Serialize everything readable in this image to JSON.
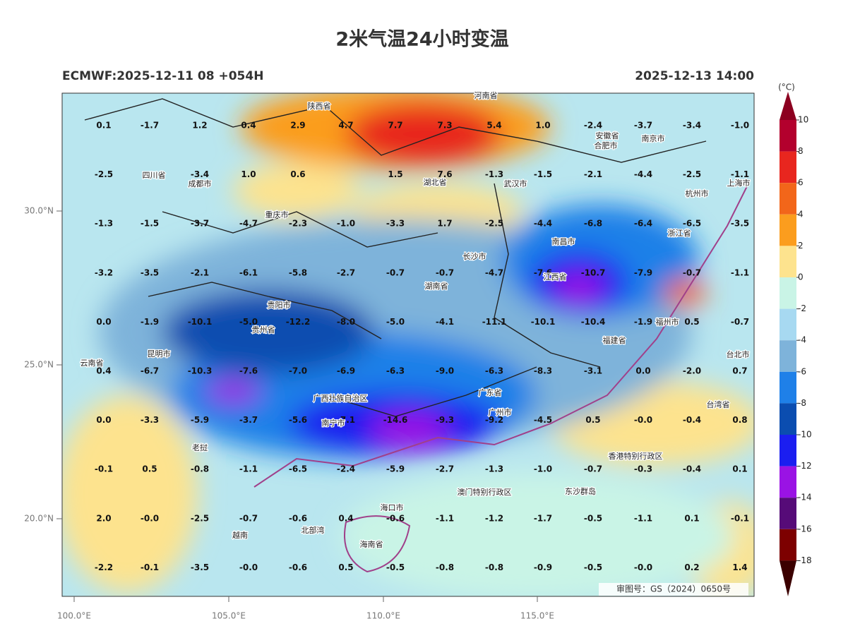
{
  "map": {
    "title": "2米气温24小时变温",
    "subtitle_left": "ECMWF:2025-12-11 08 +054H",
    "subtitle_right": "2025-12-13 14:00",
    "watermark": "审图号：GS（2024）0650号",
    "lat_labels": [
      "30.0°N",
      "25.0°N",
      "20.0°N"
    ],
    "lon_labels": [
      "100.0°E",
      "105.0°E",
      "110.0°E",
      "115.0°E"
    ],
    "colorbar": {
      "unit": "(°C)",
      "levels": [
        10,
        8,
        6,
        4,
        2,
        0,
        -2,
        -4,
        -6,
        -8,
        -10,
        -12,
        -14,
        -16,
        -18
      ],
      "colors": [
        "#b3002d",
        "#e8261f",
        "#f2661a",
        "#fb9d1e",
        "#fde38e",
        "#c9f4e6",
        "#a7d9f1",
        "#7eb3da",
        "#1f80e8",
        "#0b4db0",
        "#1b1ef0",
        "#9a13e4",
        "#560b78",
        "#7d0000"
      ],
      "over_color": "#8c0020",
      "under_color": "#3b0000"
    },
    "grid": [
      [
        "0.1",
        "-1.7",
        "1.2",
        "0.4",
        "2.9",
        "4.7",
        "7.7",
        "7.3",
        "5.4",
        "1.0",
        "-2.4",
        "-3.7",
        "-3.4",
        "-1.0"
      ],
      [
        "-2.5",
        null,
        "-3.4",
        "1.0",
        "0.6",
        null,
        "1.5",
        "7.6",
        "-1.3",
        "-1.5",
        "-2.1",
        "-4.4",
        "-2.5",
        "-1.1"
      ],
      [
        "-1.3",
        "-1.5",
        "-3.7",
        "-4.7",
        "-2.3",
        "-1.0",
        "-3.3",
        "1.7",
        "-2.5",
        "-4.4",
        "-6.8",
        "-6.4",
        "-6.5",
        "-3.5"
      ],
      [
        "-3.2",
        "-3.5",
        "-2.1",
        "-6.1",
        "-5.8",
        "-2.7",
        "-0.7",
        "-0.7",
        "-4.7",
        "-7.6",
        "-10.7",
        "-7.9",
        "-0.7",
        "-1.1"
      ],
      [
        "0.0",
        "-1.9",
        "-10.1",
        "-5.0",
        "-12.2",
        "-8.0",
        "-5.0",
        "-4.1",
        "-11.1",
        "-10.1",
        "-10.4",
        "-1.9",
        "0.5",
        "-0.7"
      ],
      [
        "0.4",
        "-6.7",
        "-10.3",
        "-7.6",
        "-7.0",
        "-6.9",
        "-6.3",
        "-9.0",
        "-6.3",
        "-8.3",
        "-3.1",
        "0.0",
        "-2.0",
        "0.7"
      ],
      [
        "0.0",
        "-3.3",
        "-5.9",
        "-3.7",
        "-5.6",
        "-7.1",
        "-14.6",
        "-9.3",
        "-9.2",
        "-4.5",
        "0.5",
        "-0.0",
        "-0.4",
        "0.8"
      ],
      [
        "-0.1",
        "0.5",
        "-0.8",
        "-1.1",
        "-6.5",
        "-2.4",
        "-5.9",
        "-2.7",
        "-1.3",
        "-1.0",
        "-0.7",
        "-0.3",
        "-0.4",
        "0.1"
      ],
      [
        "2.0",
        "-0.0",
        "-2.5",
        "-0.7",
        "-0.6",
        "0.4",
        "-0.6",
        "-1.1",
        "-1.2",
        "-1.7",
        "-0.5",
        "-1.1",
        "0.1",
        "-0.1"
      ],
      [
        "-2.2",
        "-0.1",
        "-3.5",
        "-0.0",
        "-0.6",
        "0.5",
        "-0.5",
        "-0.8",
        "-0.8",
        "-0.9",
        "-0.5",
        "-0.0",
        "0.2",
        "1.4"
      ]
    ],
    "places": [
      "陕西省",
      "河南省",
      "安徽省",
      "合肥市",
      "南京市",
      "四川省",
      "成都市",
      "重庆市",
      "湖北省",
      "武汉市",
      "杭州市",
      "上海市",
      "长沙市",
      "南昌市",
      "浙江省",
      "湖南省",
      "江西省",
      "贵阳市",
      "贵州省",
      "福州市",
      "福建省",
      "昆明市",
      "云南省",
      "广西壮族自治区",
      "广东省",
      "广州市",
      "南宁市",
      "台北市",
      "台湾省",
      "香港特别行政区",
      "澳门特别行政区",
      "海口市",
      "海南省",
      "东沙群岛",
      "老挝",
      "越南",
      "北部湾"
    ]
  }
}
